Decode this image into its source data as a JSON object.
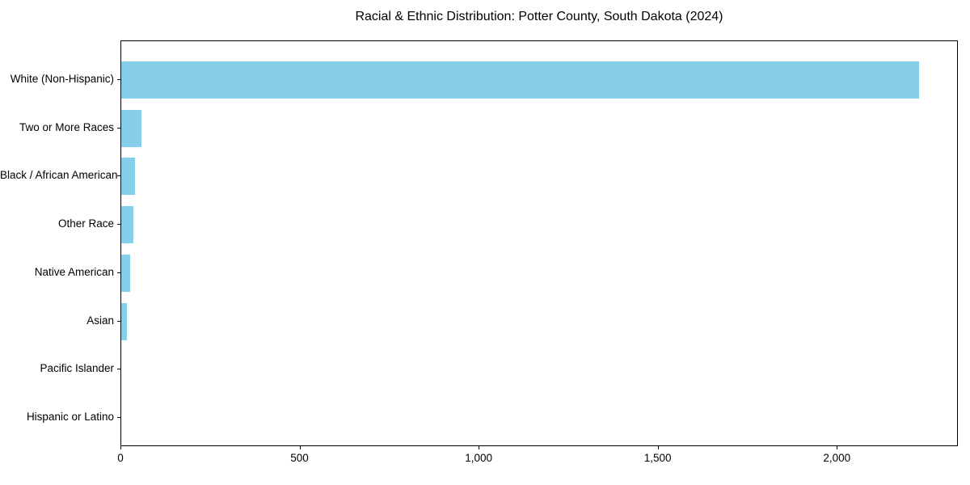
{
  "chart_data": {
    "type": "bar",
    "orientation": "horizontal",
    "title": "Racial & Ethnic Distribution: Potter County, South Dakota (2024)",
    "categories": [
      "White (Non-Hispanic)",
      "Two or More Races",
      "Black / African American",
      "Other Race",
      "Native American",
      "Asian",
      "Pacific Islander",
      "Hispanic or Latino"
    ],
    "values": [
      2227,
      57,
      39,
      33,
      24,
      16,
      0,
      0
    ],
    "xlabel": "",
    "ylabel": "",
    "xlim": [
      0,
      2338
    ],
    "x_ticks": [
      {
        "value": 0,
        "label": "0"
      },
      {
        "value": 500,
        "label": "500"
      },
      {
        "value": 1000,
        "label": "1,000"
      },
      {
        "value": 1500,
        "label": "1,500"
      },
      {
        "value": 2000,
        "label": "2,000"
      }
    ],
    "grid": false,
    "legend": null,
    "bar_color": "#87CEEB",
    "background_color": "#FFFFFF",
    "axis_color": "#000000",
    "text_color": "#000000"
  }
}
